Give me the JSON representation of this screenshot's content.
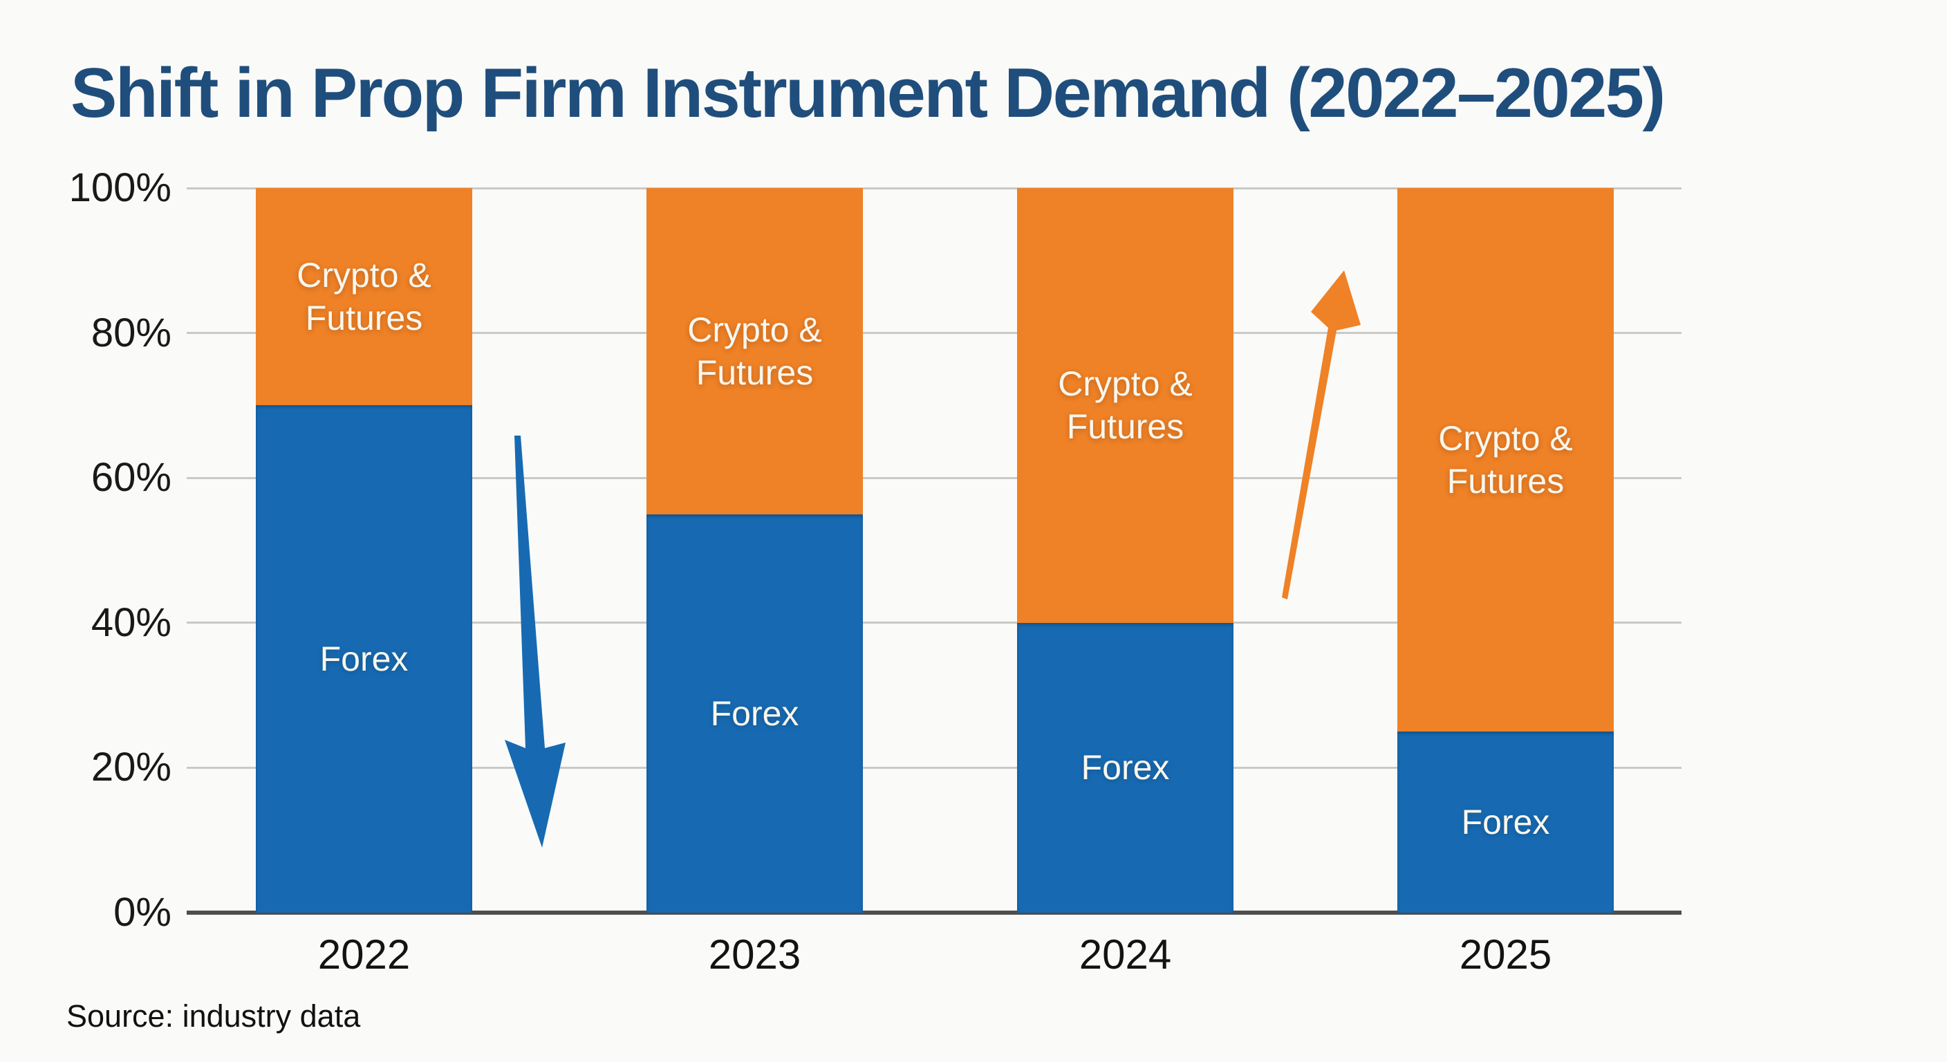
{
  "title": "Shift in Prop Firm Instrument Demand (2022–2025)",
  "source_note": "Source: industry data",
  "colors": {
    "forex_blue": "#176ab2",
    "crypto_orange": "#ef8126",
    "title_navy": "#1f4e7c",
    "background": "#fafaf8",
    "gridline_gray": "#c9c9c6",
    "axis_dark": "#4e4e4e",
    "tick_text": "#191919",
    "bar_label_white": "#faf7ee"
  },
  "chart_data": {
    "type": "bar",
    "stacked": true,
    "unit": "%",
    "title": "Shift in Prop Firm Instrument Demand (2022–2025)",
    "categories": [
      "2022",
      "2023",
      "2024",
      "2025"
    ],
    "series": [
      {
        "name": "Forex",
        "color_key": "forex_blue",
        "values": [
          70,
          55,
          40,
          25
        ]
      },
      {
        "name": "Crypto & Futures",
        "label_lines": [
          "Crypto &",
          "Futures"
        ],
        "color_key": "crypto_orange",
        "values": [
          30,
          45,
          60,
          75
        ]
      }
    ],
    "yticks": [
      "100%",
      "80%",
      "60%",
      "40%",
      "20%",
      "0%"
    ],
    "ylim": [
      0,
      100
    ],
    "grid": true,
    "legend": "labels-inside-bars",
    "annotations": [
      {
        "type": "arrow",
        "direction": "down",
        "color_key": "forex_blue",
        "meaning": "forex-demand-declining",
        "between": [
          "2022",
          "2023"
        ]
      },
      {
        "type": "arrow",
        "direction": "up",
        "color_key": "crypto_orange",
        "meaning": "crypto-futures-demand-rising",
        "between": [
          "2024",
          "2025"
        ]
      }
    ]
  }
}
